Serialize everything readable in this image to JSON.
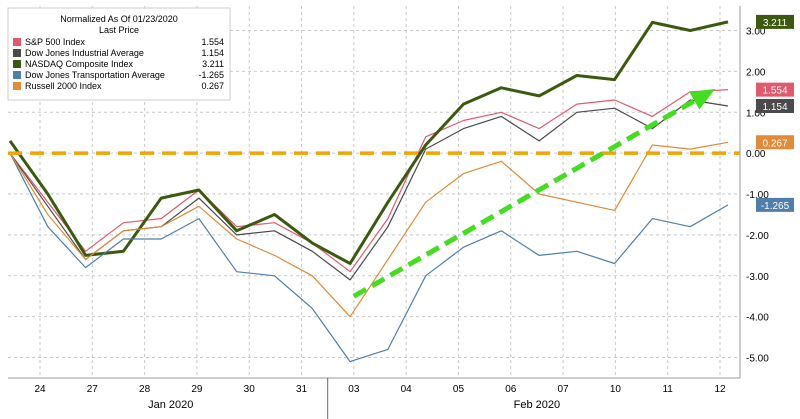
{
  "chart_data": {
    "type": "line",
    "legend_title": "Normalized As Of 01/23/2020",
    "legend_subtitle": "Last Price",
    "legend_position": "top-left",
    "x_ticks": [
      "24",
      "27",
      "28",
      "29",
      "30",
      "31",
      "03",
      "04",
      "05",
      "06",
      "07",
      "10",
      "11",
      "12"
    ],
    "month_labels": [
      {
        "label": "Jan 2020",
        "between": [
          "28",
          "29"
        ]
      },
      {
        "label": "Feb 2020",
        "between": [
          "06",
          "07"
        ]
      }
    ],
    "y_ticks": [
      "3.00",
      "2.00",
      "1.00",
      "0.00",
      "-1.00",
      "-2.00",
      "-3.00",
      "-4.00",
      "-5.00"
    ],
    "y_tick_values": [
      3,
      2,
      1,
      0,
      -1,
      -2,
      -3,
      -4,
      -5
    ],
    "ylim": [
      -5.5,
      3.6
    ],
    "grid": "dashed",
    "series": [
      {
        "name": "S&P 500 Index",
        "last": "1.554",
        "color": "#e05a6e",
        "values": [
          0.0,
          -1.2,
          -2.4,
          -1.7,
          -1.6,
          -0.9,
          -1.8,
          -1.7,
          -2.2,
          -2.9,
          -1.6,
          0.4,
          0.8,
          1.0,
          0.6,
          1.2,
          1.3,
          0.9,
          1.5,
          1.554
        ]
      },
      {
        "name": "Dow Jones Industrial Average",
        "last": "1.154",
        "color": "#4a4a4a",
        "values": [
          0.0,
          -1.3,
          -2.6,
          -1.9,
          -1.8,
          -1.1,
          -2.0,
          -1.9,
          -2.4,
          -3.1,
          -1.8,
          0.1,
          0.6,
          0.9,
          0.3,
          1.0,
          1.1,
          0.6,
          1.3,
          1.154
        ]
      },
      {
        "name": "NASDAQ Composite Index",
        "last": "3.211",
        "color": "#3b5a10",
        "values": [
          0.3,
          -1.0,
          -2.5,
          -2.4,
          -1.1,
          -0.9,
          -1.9,
          -1.5,
          -2.2,
          -2.7,
          -1.2,
          0.2,
          1.2,
          1.6,
          1.4,
          1.9,
          1.8,
          3.2,
          3.0,
          3.211
        ]
      },
      {
        "name": "Dow Jones Transportation Average",
        "last": "-1.265",
        "color": "#4f7fa8",
        "values": [
          0.0,
          -1.8,
          -2.8,
          -2.1,
          -2.1,
          -1.6,
          -2.9,
          -3.0,
          -3.8,
          -5.1,
          -4.8,
          -3.0,
          -2.3,
          -1.9,
          -2.5,
          -2.4,
          -2.7,
          -1.6,
          -1.8,
          -1.265
        ]
      },
      {
        "name": "Russell 2000 Index",
        "last": "0.267",
        "color": "#e08a3a",
        "values": [
          0.0,
          -1.5,
          -2.6,
          -1.9,
          -1.8,
          -1.3,
          -2.1,
          -2.5,
          -3.0,
          -4.0,
          -2.6,
          -1.2,
          -0.5,
          -0.2,
          -1.0,
          -1.2,
          -1.4,
          0.2,
          0.1,
          0.267
        ]
      }
    ],
    "annotations": [
      {
        "type": "hline",
        "value": 0.0,
        "color": "#f0a500"
      },
      {
        "type": "arrow",
        "from": {
          "x": "03",
          "y": -3.5
        },
        "to": {
          "x": "12",
          "y": 1.5
        },
        "color": "#44dd22"
      }
    ]
  }
}
